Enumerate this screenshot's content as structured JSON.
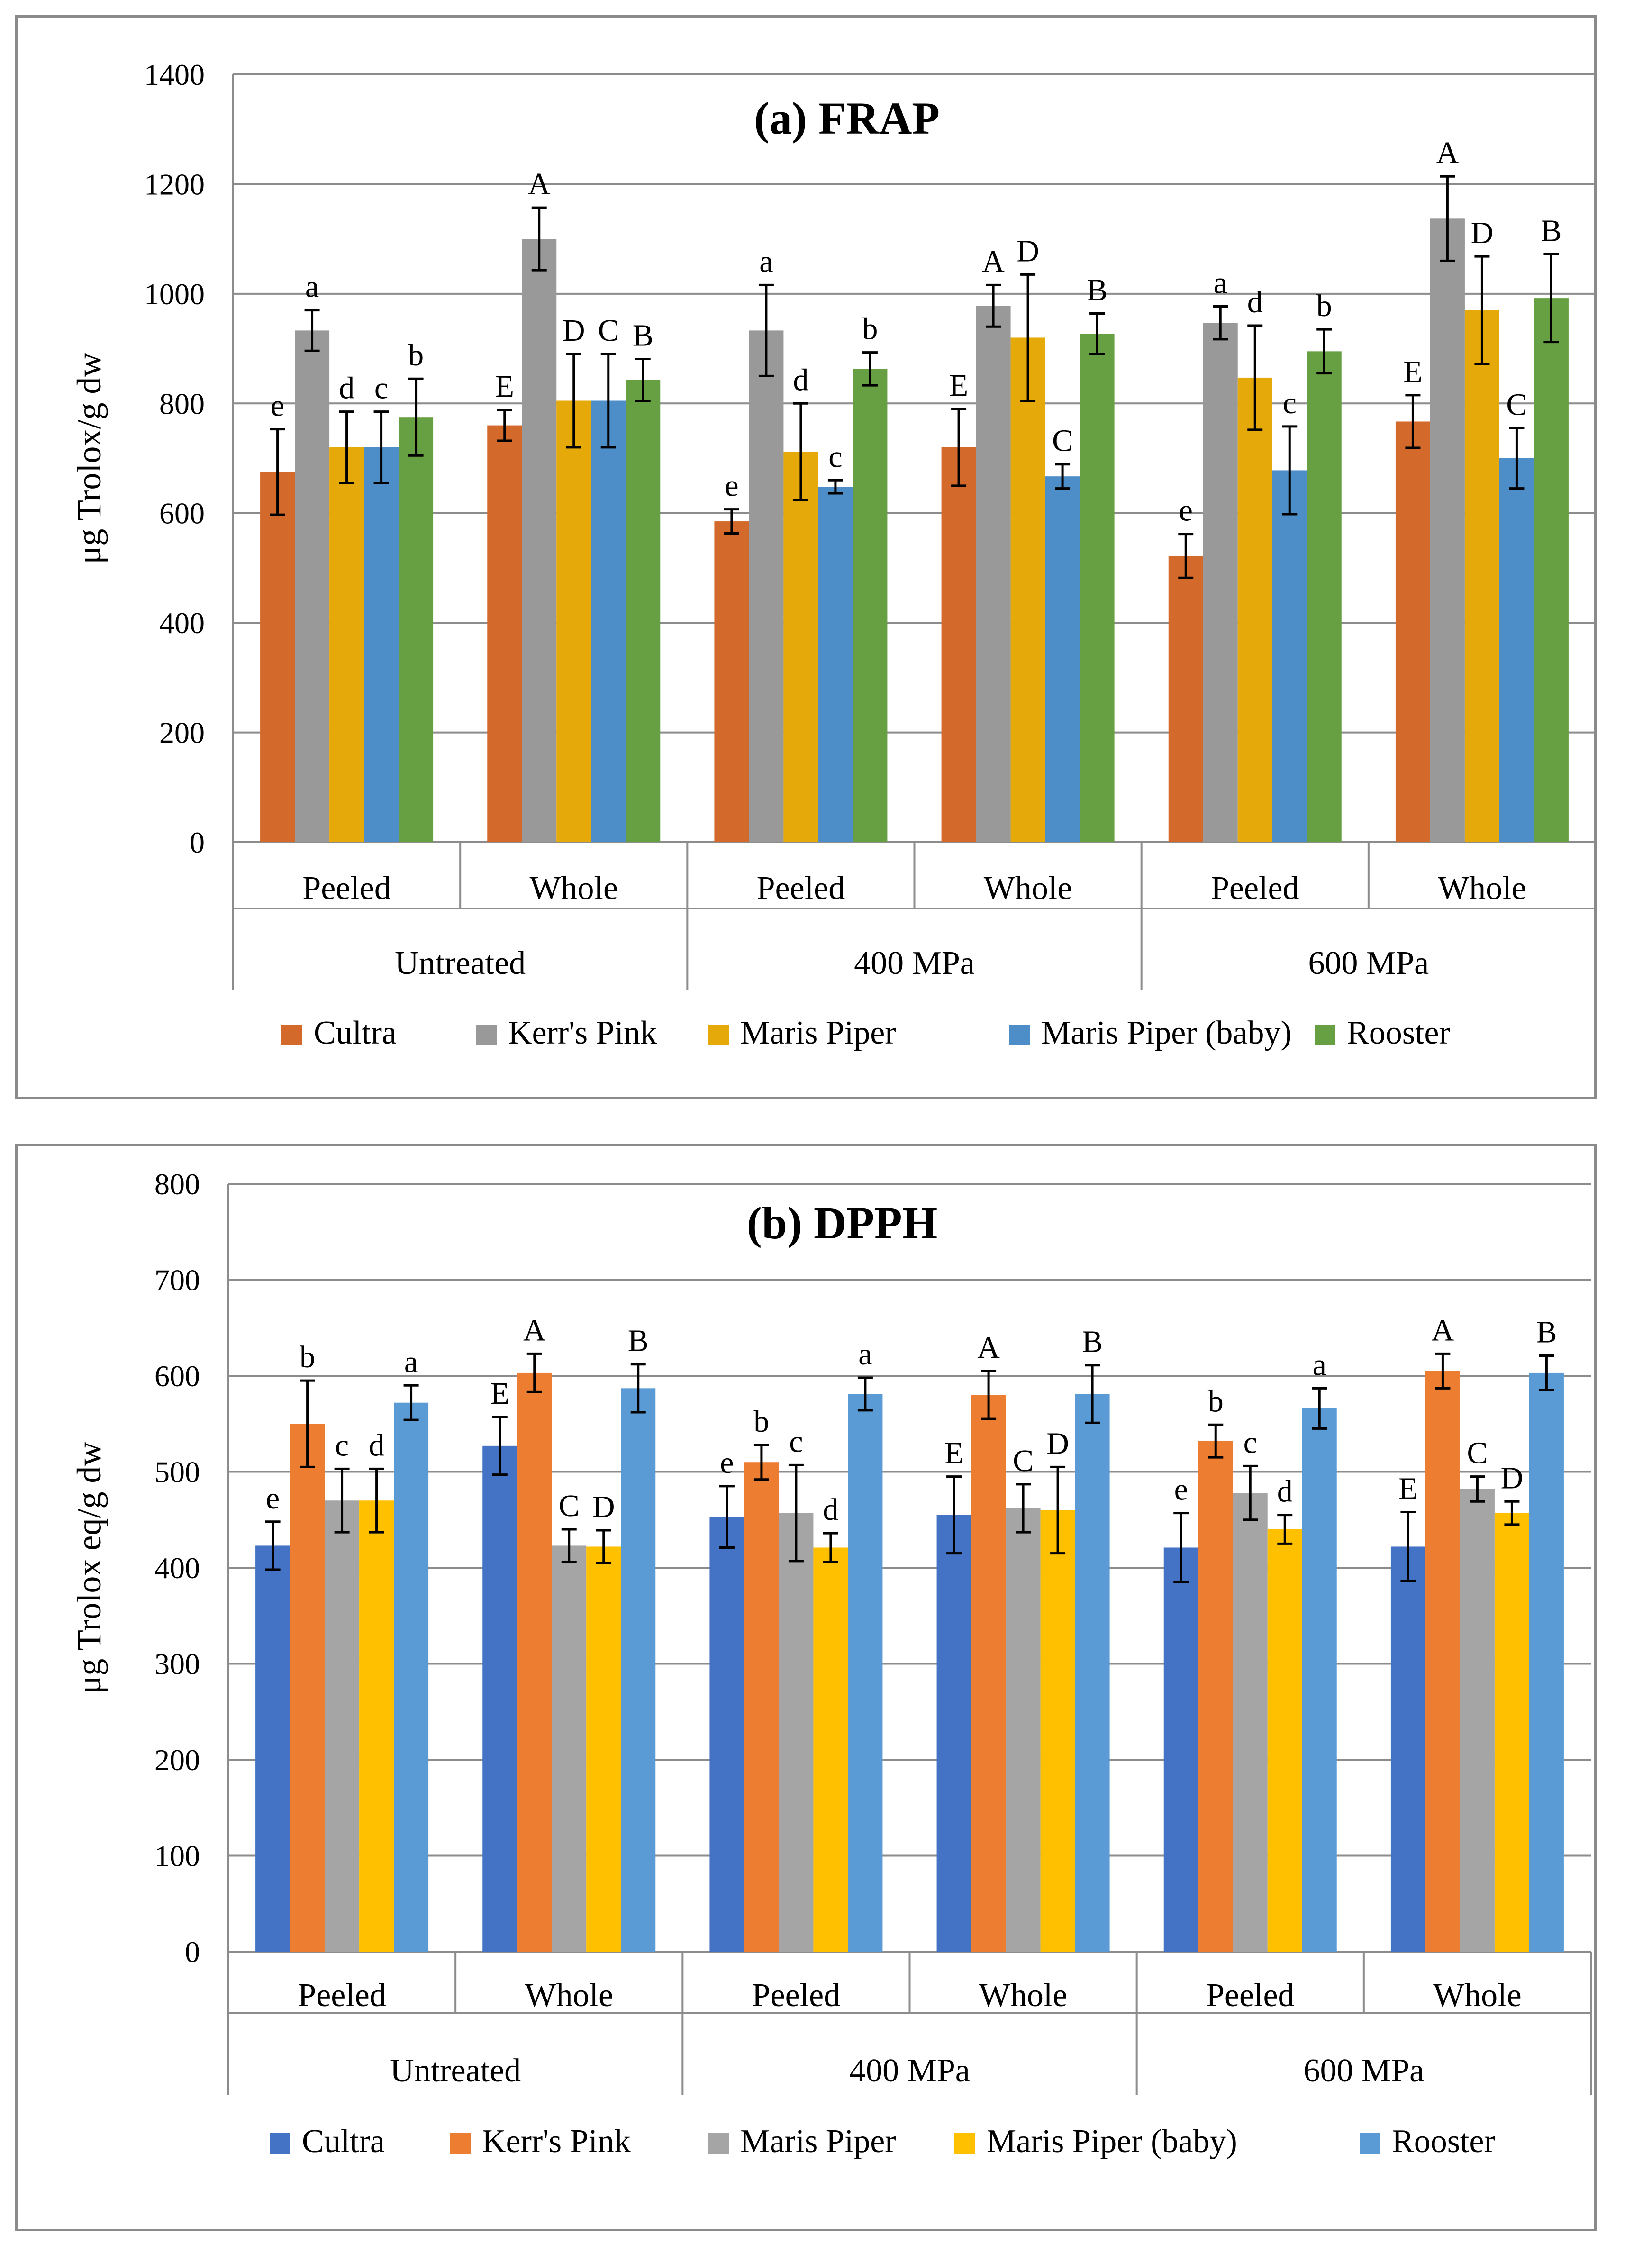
{
  "charts": [
    {
      "type": "bar",
      "title": "(a) FRAP",
      "ylabel": "μg Trolox/g dw",
      "ylim": [
        0,
        1400
      ],
      "ytick_step": 200,
      "ytick_labels": [
        "0",
        "200",
        "400",
        "600",
        "800",
        "1000",
        "1200",
        "1400"
      ],
      "grid": true,
      "legend_position": "bottom",
      "groups": [
        "Untreated",
        "400 MPa",
        "600 MPa"
      ],
      "categories": [
        "Peeled",
        "Whole",
        "Peeled",
        "Whole",
        "Peeled",
        "Whole"
      ],
      "series": [
        {
          "name": "Cultra",
          "color": "#D4692C",
          "values": [
            675,
            760,
            585,
            720,
            522,
            767
          ],
          "errors": [
            78,
            28,
            22,
            70,
            40,
            48
          ],
          "letters": [
            "e",
            "E",
            "e",
            "E",
            "e",
            "E"
          ]
        },
        {
          "name": "Kerr's Pink",
          "color": "#999999",
          "values": [
            933,
            1100,
            933,
            978,
            947,
            1137
          ],
          "errors": [
            37,
            57,
            83,
            38,
            30,
            77
          ],
          "letters": [
            "a",
            "A",
            "a",
            "A",
            "a",
            "A"
          ]
        },
        {
          "name": "Maris Piper",
          "color": "#E5A909",
          "values": [
            720,
            805,
            712,
            920,
            847,
            970
          ],
          "errors": [
            65,
            85,
            88,
            115,
            95,
            98
          ],
          "letters": [
            "d",
            "D",
            "d",
            "D",
            "d",
            "D"
          ]
        },
        {
          "name": "Maris Piper (baby)",
          "color": "#4D8DC8",
          "values": [
            720,
            805,
            648,
            667,
            678,
            700
          ],
          "errors": [
            65,
            85,
            12,
            22,
            80,
            55
          ],
          "letters": [
            "c",
            "C",
            "c",
            "C",
            "c",
            "C"
          ]
        },
        {
          "name": "Rooster",
          "color": "#67A042",
          "values": [
            775,
            843,
            863,
            927,
            895,
            992
          ],
          "errors": [
            70,
            38,
            30,
            37,
            40,
            80
          ],
          "letters": [
            "b",
            "B",
            "b",
            "B",
            "b",
            "B"
          ]
        }
      ]
    },
    {
      "type": "bar",
      "title": "(b) DPPH",
      "ylabel": "μg Trolox eq/g dw",
      "ylim": [
        0,
        800
      ],
      "ytick_step": 100,
      "ytick_labels": [
        "0",
        "100",
        "200",
        "300",
        "400",
        "500",
        "600",
        "700",
        "800"
      ],
      "grid": true,
      "legend_position": "bottom",
      "groups": [
        "Untreated",
        "400 MPa",
        "600 MPa"
      ],
      "categories": [
        "Peeled",
        "Whole",
        "Peeled",
        "Whole",
        "Peeled",
        "Whole"
      ],
      "series": [
        {
          "name": "Cultra",
          "color": "#4472C4",
          "values": [
            423,
            527,
            453,
            455,
            421,
            422
          ],
          "errors": [
            25,
            30,
            32,
            40,
            36,
            36
          ],
          "letters": [
            "e",
            "E",
            "e",
            "E",
            "e",
            "E"
          ]
        },
        {
          "name": "Kerr's Pink",
          "color": "#ED7D31",
          "values": [
            550,
            603,
            510,
            580,
            532,
            605
          ],
          "errors": [
            45,
            20,
            18,
            25,
            17,
            18
          ],
          "letters": [
            "b",
            "A",
            "b",
            "A",
            "b",
            "A"
          ]
        },
        {
          "name": "Maris Piper",
          "color": "#A5A5A5",
          "values": [
            470,
            423,
            457,
            462,
            478,
            482
          ],
          "errors": [
            33,
            17,
            50,
            25,
            28,
            13
          ],
          "letters": [
            "c",
            "C",
            "c",
            "C",
            "c",
            "C"
          ]
        },
        {
          "name": "Maris Piper (baby)",
          "color": "#FFC000",
          "values": [
            470,
            422,
            421,
            460,
            440,
            457
          ],
          "errors": [
            33,
            17,
            15,
            45,
            15,
            12
          ],
          "letters": [
            "d",
            "D",
            "d",
            "D",
            "d",
            "D"
          ]
        },
        {
          "name": "Rooster",
          "color": "#5B9BD5",
          "values": [
            572,
            587,
            581,
            581,
            566,
            603
          ],
          "errors": [
            18,
            25,
            17,
            30,
            21,
            18
          ],
          "letters": [
            "a",
            "B",
            "a",
            "B",
            "a",
            "B"
          ]
        }
      ]
    }
  ]
}
